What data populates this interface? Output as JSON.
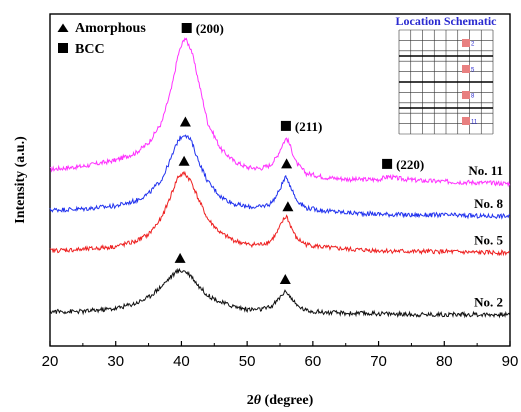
{
  "chart_data": {
    "type": "line",
    "xlabel_prefix": "2",
    "xlabel_theta": "θ",
    "xlabel_suffix": " (degree)",
    "ylabel": "Intensity (a.u.)",
    "xlim": [
      20,
      90
    ],
    "x_ticks": [
      "20",
      "30",
      "40",
      "50",
      "60",
      "70",
      "80",
      "90"
    ],
    "legend": {
      "placement": "top-left",
      "entries": [
        {
          "marker": "triangle",
          "label": "Amorphous"
        },
        {
          "marker": "square",
          "label": "BCC"
        }
      ]
    },
    "series": [
      {
        "name": "No. 11",
        "color": "#ff33ff",
        "x": [
          20,
          25,
          30,
          33,
          35,
          37,
          38.5,
          39.5,
          40.5,
          41.5,
          42.5,
          44,
          46,
          48,
          50,
          52,
          53.5,
          54.5,
          55.5,
          56,
          56.5,
          57.5,
          59,
          62,
          66,
          70,
          71.5,
          73,
          76,
          80,
          85,
          90
        ],
        "y": [
          0.62,
          0.65,
          0.71,
          0.78,
          0.88,
          1.08,
          1.42,
          1.75,
          1.92,
          1.8,
          1.52,
          1.08,
          0.82,
          0.7,
          0.64,
          0.63,
          0.66,
          0.74,
          0.88,
          0.93,
          0.86,
          0.68,
          0.58,
          0.54,
          0.52,
          0.52,
          0.55,
          0.53,
          0.51,
          0.5,
          0.49,
          0.48
        ]
      },
      {
        "name": "No. 8",
        "color": "#2233ee",
        "x": [
          20,
          25,
          30,
          33,
          35,
          37,
          38.5,
          39.5,
          40.5,
          41.5,
          42.5,
          44,
          46,
          48,
          50,
          52,
          53.5,
          54.5,
          55.5,
          56,
          56.5,
          57.5,
          59,
          62,
          66,
          70,
          75,
          80,
          85,
          90
        ],
        "y": [
          0.22,
          0.23,
          0.26,
          0.31,
          0.38,
          0.52,
          0.74,
          0.91,
          0.97,
          0.9,
          0.72,
          0.5,
          0.35,
          0.28,
          0.25,
          0.25,
          0.28,
          0.36,
          0.5,
          0.55,
          0.47,
          0.32,
          0.24,
          0.21,
          0.19,
          0.18,
          0.17,
          0.17,
          0.16,
          0.16
        ]
      },
      {
        "name": "No. 5",
        "color": "#ee2222",
        "x": [
          20,
          25,
          30,
          33,
          35,
          37,
          38.5,
          39.5,
          40.5,
          41.5,
          42.5,
          44,
          46,
          48,
          50,
          52,
          53.5,
          54.5,
          55.5,
          56,
          56.5,
          57.5,
          59,
          62,
          66,
          70,
          75,
          80,
          85,
          90
        ],
        "y": [
          -0.18,
          -0.17,
          -0.14,
          -0.09,
          -0.02,
          0.14,
          0.38,
          0.55,
          0.58,
          0.5,
          0.34,
          0.13,
          -0.01,
          -0.08,
          -0.12,
          -0.12,
          -0.09,
          -0.01,
          0.12,
          0.16,
          0.08,
          -0.06,
          -0.12,
          -0.15,
          -0.17,
          -0.18,
          -0.19,
          -0.19,
          -0.2,
          -0.2
        ]
      },
      {
        "name": "No. 2",
        "color": "#111111",
        "x": [
          20,
          25,
          30,
          33,
          35,
          37,
          38.5,
          39.5,
          40.5,
          41.5,
          42.5,
          44,
          46,
          48,
          50,
          52,
          53.5,
          54.5,
          55.5,
          56,
          56.5,
          57.5,
          59,
          62,
          66,
          70,
          75,
          80,
          85,
          90
        ],
        "y": [
          -0.78,
          -0.78,
          -0.75,
          -0.7,
          -0.64,
          -0.53,
          -0.43,
          -0.38,
          -0.38,
          -0.43,
          -0.52,
          -0.62,
          -0.69,
          -0.73,
          -0.76,
          -0.76,
          -0.74,
          -0.68,
          -0.6,
          -0.58,
          -0.63,
          -0.72,
          -0.77,
          -0.79,
          -0.8,
          -0.8,
          -0.81,
          -0.81,
          -0.81,
          -0.81
        ]
      }
    ],
    "sample_labels": [
      {
        "text": "No. 11",
        "series": 0
      },
      {
        "text": "No. 8",
        "series": 1
      },
      {
        "text": "No. 5",
        "series": 2
      },
      {
        "text": "No. 2",
        "series": 3
      }
    ],
    "peak_markers": [
      {
        "marker": "square",
        "series": 0,
        "x": 40.8,
        "label": "(200)"
      },
      {
        "marker": "square",
        "series": 0,
        "x": 55.9,
        "label": "(211)"
      },
      {
        "marker": "square",
        "series": 0,
        "x": 71.3,
        "label": "(220)"
      },
      {
        "marker": "triangle",
        "series": 1,
        "x": 40.6
      },
      {
        "marker": "triangle",
        "series": 1,
        "x": 56.0
      },
      {
        "marker": "triangle",
        "series": 2,
        "x": 40.4
      },
      {
        "marker": "triangle",
        "series": 2,
        "x": 56.2
      },
      {
        "marker": "triangle",
        "series": 3,
        "x": 39.8
      },
      {
        "marker": "triangle",
        "series": 3,
        "x": 55.8
      }
    ],
    "inset": {
      "title": "Location Schematic",
      "title_color": "#2a2ad0",
      "marker_color": "#e88080",
      "points": [
        "2",
        "5",
        "8",
        "11"
      ]
    }
  }
}
